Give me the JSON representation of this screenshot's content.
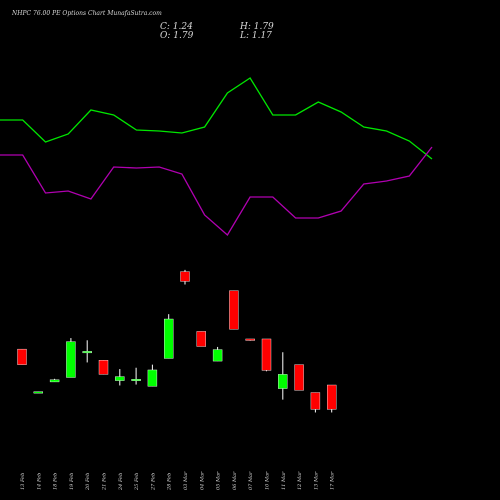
{
  "header": {
    "title": "NHPC 76.00 PE Options Chart MunafaSutra.com",
    "close": "C: 1.24",
    "high": "H: 1.79",
    "open": "O: 1.79",
    "low": "L: 1.17"
  },
  "colors": {
    "up": "#00ff00",
    "down": "#ff0000",
    "green_line": "#00e600",
    "purple_line": "#b000b0",
    "background": "#000000",
    "text": "#d8d8d8"
  },
  "chart_data": {
    "type": "candlestick",
    "categories": [
      "13 Feb",
      "14 Feb",
      "18 Feb",
      "19 Feb",
      "20 Feb",
      "21 Feb",
      "24 Feb",
      "25 Feb",
      "27 Feb",
      "28 Feb",
      "03 Mar",
      "04 Mar",
      "05 Mar",
      "06 Mar",
      "07 Mar",
      "10 Mar",
      "11 Mar",
      "12 Mar",
      "13 Mar",
      "17 Mar"
    ],
    "x_tick_labels": [
      "13 Feb",
      "14 Feb",
      "18 Feb",
      "19 Feb",
      "20 Feb",
      "21 Feb",
      "24 Feb",
      "25 Feb",
      "27 Feb",
      "28 Feb",
      "03 Mar",
      "04 Mar",
      "05 Mar",
      "06 Mar",
      "07 Mar",
      "10 Mar",
      "11 Mar",
      "12 Mar",
      "13 Mar",
      "17 Mar"
    ],
    "candles": [
      {
        "date": "13 Feb",
        "open": 2.6,
        "high": 2.6,
        "low": 2.25,
        "close": 2.25
      },
      {
        "date": "14 Feb",
        "open": 1.64,
        "high": 1.64,
        "low": 1.62,
        "close": 1.64
      },
      {
        "date": "18 Feb",
        "open": 1.86,
        "high": 1.93,
        "low": 1.86,
        "close": 1.91
      },
      {
        "date": "19 Feb",
        "open": 1.96,
        "high": 2.85,
        "low": 1.96,
        "close": 2.77
      },
      {
        "date": "20 Feb",
        "open": 2.53,
        "high": 2.8,
        "low": 2.3,
        "close": 2.55
      },
      {
        "date": "21 Feb",
        "open": 2.35,
        "high": 2.35,
        "low": 2.03,
        "close": 2.03
      },
      {
        "date": "24 Feb",
        "open": 1.89,
        "high": 2.15,
        "low": 1.78,
        "close": 1.98
      },
      {
        "date": "25 Feb",
        "open": 1.89,
        "high": 2.18,
        "low": 1.8,
        "close": 1.92
      },
      {
        "date": "27 Feb",
        "open": 1.76,
        "high": 2.25,
        "low": 1.76,
        "close": 2.13
      },
      {
        "date": "28 Feb",
        "open": 2.39,
        "high": 3.39,
        "low": 2.39,
        "close": 3.28
      },
      {
        "date": "03 Mar",
        "open": 4.35,
        "high": 4.39,
        "low": 4.06,
        "close": 4.13
      },
      {
        "date": "04 Mar",
        "open": 3.0,
        "high": 3.0,
        "low": 2.66,
        "close": 2.66
      },
      {
        "date": "05 Mar",
        "open": 2.33,
        "high": 2.65,
        "low": 2.33,
        "close": 2.59
      },
      {
        "date": "06 Mar",
        "open": 3.92,
        "high": 3.92,
        "low": 3.05,
        "close": 3.05
      },
      {
        "date": "07 Mar",
        "open": 2.83,
        "high": 2.83,
        "low": 2.79,
        "close": 2.81
      },
      {
        "date": "10 Mar",
        "open": 2.83,
        "high": 2.83,
        "low": 2.1,
        "close": 2.12
      },
      {
        "date": "11 Mar",
        "open": 1.71,
        "high": 2.53,
        "low": 1.46,
        "close": 2.03
      },
      {
        "date": "12 Mar",
        "open": 2.25,
        "high": 2.25,
        "low": 1.68,
        "close": 1.67
      },
      {
        "date": "13 Mar",
        "open": 1.62,
        "high": 1.62,
        "low": 1.17,
        "close": 1.24
      },
      {
        "date": "17 Mar",
        "open": 1.79,
        "high": 1.79,
        "low": 1.17,
        "close": 1.24
      }
    ],
    "green_line": [
      120,
      120,
      142,
      134,
      110,
      115,
      130,
      131,
      133,
      127,
      93,
      78,
      115,
      115,
      102,
      112,
      127,
      131,
      141,
      159
    ],
    "purple_line": [
      155,
      155,
      193,
      191,
      199,
      167,
      168,
      167,
      174,
      215,
      235,
      197,
      197,
      218,
      218,
      211,
      184,
      181,
      176,
      147
    ],
    "lines_note_unit": "",
    "y_scale": "price",
    "price_range": [
      1.0,
      4.5
    ],
    "grid": false,
    "legend": ""
  }
}
